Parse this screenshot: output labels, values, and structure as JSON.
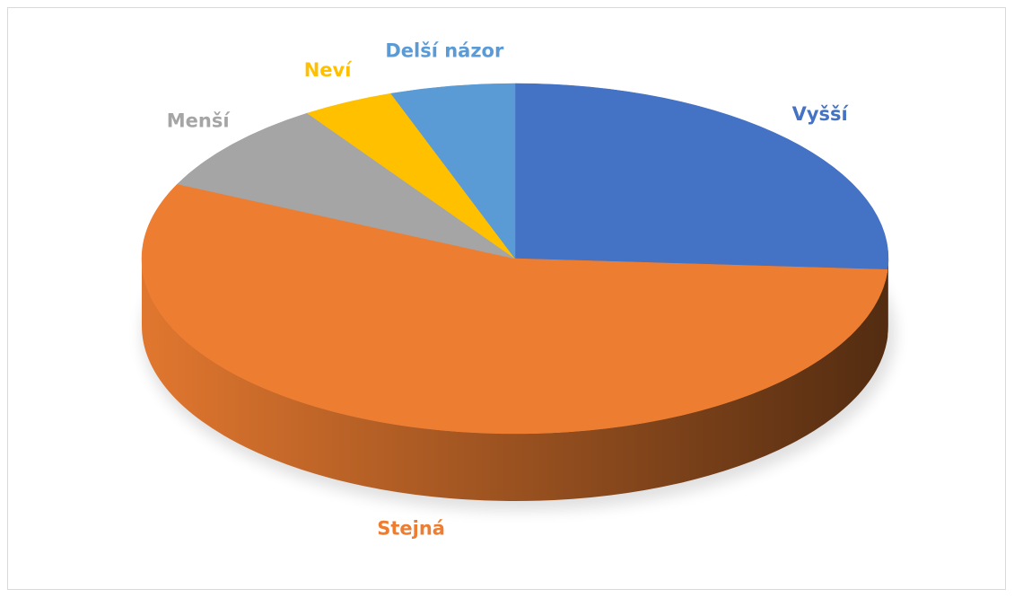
{
  "chart_data": {
    "type": "pie",
    "categories": [
      "Vyšší",
      "Stejná",
      "Menší",
      "Neví",
      "Delší názor"
    ],
    "values": [
      26,
      56,
      8.6,
      4,
      5.4
    ],
    "colors": [
      "#4472c4",
      "#ed7d31",
      "#a5a5a5",
      "#ffc000",
      "#5b9bd5"
    ]
  }
}
